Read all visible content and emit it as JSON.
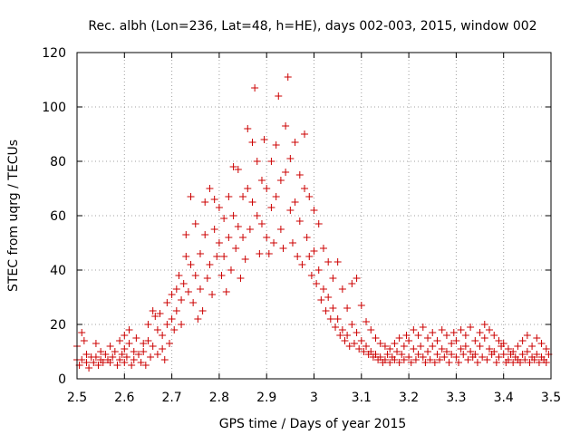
{
  "chart_data": {
    "type": "scatter",
    "title": "Rec. albh (Lon=236, Lat=48, h=HE), days 002-003, 2015, window 002",
    "xlabel": "GPS time / Days of year 2015",
    "ylabel": "STEC from uqrg / TECUs",
    "xlim": [
      2.5,
      3.5
    ],
    "ylim": [
      0,
      120
    ],
    "xticks": [
      2.5,
      2.6,
      2.7,
      2.8,
      2.9,
      3.0,
      3.1,
      3.2,
      3.3,
      3.4,
      3.5
    ],
    "xtick_labels": [
      "2.5",
      "2.6",
      "2.7",
      "2.8",
      "2.9",
      "3",
      "3.1",
      "3.2",
      "3.3",
      "3.4",
      "3.5"
    ],
    "yticks": [
      0,
      20,
      40,
      60,
      80,
      100,
      120
    ],
    "ytick_labels": [
      "0",
      "20",
      "40",
      "60",
      "80",
      "100",
      "120"
    ],
    "grid": true,
    "marker": "+",
    "color": "#cc0000",
    "series": [
      {
        "name": "STEC",
        "points": [
          [
            2.5,
            12
          ],
          [
            2.5,
            7
          ],
          [
            2.505,
            5
          ],
          [
            2.51,
            17
          ],
          [
            2.51,
            7
          ],
          [
            2.515,
            14
          ],
          [
            2.52,
            9
          ],
          [
            2.52,
            6
          ],
          [
            2.525,
            4
          ],
          [
            2.53,
            8
          ],
          [
            2.535,
            6
          ],
          [
            2.54,
            13
          ],
          [
            2.54,
            8
          ],
          [
            2.545,
            5
          ],
          [
            2.55,
            10
          ],
          [
            2.55,
            7
          ],
          [
            2.555,
            6
          ],
          [
            2.56,
            9
          ],
          [
            2.565,
            7
          ],
          [
            2.57,
            12
          ],
          [
            2.57,
            6
          ],
          [
            2.575,
            8
          ],
          [
            2.58,
            10
          ],
          [
            2.585,
            5
          ],
          [
            2.59,
            14
          ],
          [
            2.59,
            7
          ],
          [
            2.595,
            9
          ],
          [
            2.6,
            16
          ],
          [
            2.6,
            11
          ],
          [
            2.6,
            6
          ],
          [
            2.605,
            8
          ],
          [
            2.61,
            18
          ],
          [
            2.61,
            13
          ],
          [
            2.615,
            5
          ],
          [
            2.62,
            10
          ],
          [
            2.62,
            7
          ],
          [
            2.625,
            15
          ],
          [
            2.63,
            9
          ],
          [
            2.635,
            6
          ],
          [
            2.64,
            13
          ],
          [
            2.64,
            10
          ],
          [
            2.645,
            5
          ],
          [
            2.65,
            20
          ],
          [
            2.65,
            14
          ],
          [
            2.655,
            8
          ],
          [
            2.66,
            25
          ],
          [
            2.66,
            12
          ],
          [
            2.665,
            23
          ],
          [
            2.67,
            18
          ],
          [
            2.67,
            9
          ],
          [
            2.675,
            24
          ],
          [
            2.68,
            16
          ],
          [
            2.68,
            11
          ],
          [
            2.685,
            7
          ],
          [
            2.69,
            28
          ],
          [
            2.69,
            20
          ],
          [
            2.695,
            13
          ],
          [
            2.7,
            31
          ],
          [
            2.7,
            22
          ],
          [
            2.705,
            18
          ],
          [
            2.71,
            33
          ],
          [
            2.71,
            25
          ],
          [
            2.715,
            38
          ],
          [
            2.72,
            29
          ],
          [
            2.72,
            20
          ],
          [
            2.725,
            35
          ],
          [
            2.73,
            53
          ],
          [
            2.73,
            45
          ],
          [
            2.735,
            32
          ],
          [
            2.74,
            67
          ],
          [
            2.74,
            42
          ],
          [
            2.745,
            28
          ],
          [
            2.75,
            57
          ],
          [
            2.75,
            38
          ],
          [
            2.755,
            22
          ],
          [
            2.76,
            46
          ],
          [
            2.76,
            33
          ],
          [
            2.765,
            25
          ],
          [
            2.77,
            65
          ],
          [
            2.77,
            53
          ],
          [
            2.775,
            37
          ],
          [
            2.78,
            70
          ],
          [
            2.78,
            42
          ],
          [
            2.785,
            31
          ],
          [
            2.79,
            66
          ],
          [
            2.79,
            55
          ],
          [
            2.795,
            45
          ],
          [
            2.8,
            63
          ],
          [
            2.8,
            50
          ],
          [
            2.805,
            38
          ],
          [
            2.81,
            59
          ],
          [
            2.81,
            45
          ],
          [
            2.815,
            32
          ],
          [
            2.82,
            67
          ],
          [
            2.82,
            52
          ],
          [
            2.825,
            40
          ],
          [
            2.83,
            78
          ],
          [
            2.83,
            60
          ],
          [
            2.835,
            48
          ],
          [
            2.84,
            77
          ],
          [
            2.84,
            56
          ],
          [
            2.845,
            37
          ],
          [
            2.85,
            67
          ],
          [
            2.85,
            52
          ],
          [
            2.855,
            44
          ],
          [
            2.86,
            92
          ],
          [
            2.86,
            70
          ],
          [
            2.865,
            55
          ],
          [
            2.87,
            87
          ],
          [
            2.87,
            65
          ],
          [
            2.875,
            107
          ],
          [
            2.88,
            80
          ],
          [
            2.88,
            60
          ],
          [
            2.885,
            46
          ],
          [
            2.89,
            73
          ],
          [
            2.89,
            57
          ],
          [
            2.895,
            88
          ],
          [
            2.9,
            70
          ],
          [
            2.9,
            52
          ],
          [
            2.905,
            46
          ],
          [
            2.91,
            80
          ],
          [
            2.91,
            63
          ],
          [
            2.915,
            50
          ],
          [
            2.92,
            86
          ],
          [
            2.92,
            67
          ],
          [
            2.925,
            104
          ],
          [
            2.93,
            73
          ],
          [
            2.93,
            55
          ],
          [
            2.935,
            48
          ],
          [
            2.94,
            93
          ],
          [
            2.94,
            76
          ],
          [
            2.945,
            111
          ],
          [
            2.95,
            81
          ],
          [
            2.95,
            62
          ],
          [
            2.955,
            50
          ],
          [
            2.96,
            87
          ],
          [
            2.96,
            65
          ],
          [
            2.965,
            45
          ],
          [
            2.97,
            75
          ],
          [
            2.97,
            58
          ],
          [
            2.975,
            42
          ],
          [
            2.98,
            90
          ],
          [
            2.98,
            70
          ],
          [
            2.985,
            52
          ],
          [
            2.99,
            67
          ],
          [
            2.99,
            45
          ],
          [
            2.995,
            38
          ],
          [
            3.0,
            62
          ],
          [
            3.0,
            47
          ],
          [
            3.005,
            35
          ],
          [
            3.01,
            57
          ],
          [
            3.01,
            40
          ],
          [
            3.015,
            29
          ],
          [
            3.02,
            48
          ],
          [
            3.02,
            33
          ],
          [
            3.025,
            25
          ],
          [
            3.03,
            43
          ],
          [
            3.03,
            30
          ],
          [
            3.035,
            22
          ],
          [
            3.04,
            37
          ],
          [
            3.04,
            26
          ],
          [
            3.045,
            19
          ],
          [
            3.05,
            43
          ],
          [
            3.05,
            22
          ],
          [
            3.055,
            16
          ],
          [
            3.06,
            33
          ],
          [
            3.06,
            18
          ],
          [
            3.065,
            14
          ],
          [
            3.07,
            26
          ],
          [
            3.07,
            16
          ],
          [
            3.075,
            12
          ],
          [
            3.08,
            35
          ],
          [
            3.08,
            20
          ],
          [
            3.085,
            13
          ],
          [
            3.09,
            37
          ],
          [
            3.09,
            17
          ],
          [
            3.095,
            11
          ],
          [
            3.1,
            27
          ],
          [
            3.1,
            14
          ],
          [
            3.105,
            10
          ],
          [
            3.11,
            21
          ],
          [
            3.11,
            12
          ],
          [
            3.115,
            9
          ],
          [
            3.12,
            18
          ],
          [
            3.12,
            10
          ],
          [
            3.125,
            8
          ],
          [
            3.13,
            15
          ],
          [
            3.13,
            9
          ],
          [
            3.135,
            7
          ],
          [
            3.14,
            13
          ],
          [
            3.14,
            8
          ],
          [
            3.145,
            6
          ],
          [
            3.15,
            12
          ],
          [
            3.15,
            7
          ],
          [
            3.155,
            9
          ],
          [
            3.16,
            11
          ],
          [
            3.16,
            6
          ],
          [
            3.165,
            8
          ],
          [
            3.17,
            13
          ],
          [
            3.17,
            7
          ],
          [
            3.175,
            10
          ],
          [
            3.18,
            15
          ],
          [
            3.18,
            6
          ],
          [
            3.185,
            9
          ],
          [
            3.19,
            12
          ],
          [
            3.19,
            7
          ],
          [
            3.195,
            16
          ],
          [
            3.2,
            14
          ],
          [
            3.2,
            8
          ],
          [
            3.205,
            6
          ],
          [
            3.21,
            18
          ],
          [
            3.21,
            11
          ],
          [
            3.215,
            7
          ],
          [
            3.22,
            16
          ],
          [
            3.22,
            9
          ],
          [
            3.225,
            12
          ],
          [
            3.23,
            19
          ],
          [
            3.23,
            8
          ],
          [
            3.235,
            6
          ],
          [
            3.24,
            15
          ],
          [
            3.24,
            10
          ],
          [
            3.245,
            7
          ],
          [
            3.25,
            17
          ],
          [
            3.25,
            12
          ],
          [
            3.255,
            6
          ],
          [
            3.26,
            14
          ],
          [
            3.26,
            9
          ],
          [
            3.265,
            7
          ],
          [
            3.27,
            18
          ],
          [
            3.27,
            11
          ],
          [
            3.275,
            8
          ],
          [
            3.28,
            16
          ],
          [
            3.28,
            10
          ],
          [
            3.285,
            6
          ],
          [
            3.29,
            13
          ],
          [
            3.29,
            9
          ],
          [
            3.295,
            17
          ],
          [
            3.3,
            14
          ],
          [
            3.3,
            8
          ],
          [
            3.305,
            6
          ],
          [
            3.31,
            18
          ],
          [
            3.31,
            11
          ],
          [
            3.315,
            9
          ],
          [
            3.32,
            16
          ],
          [
            3.32,
            12
          ],
          [
            3.325,
            7
          ],
          [
            3.33,
            19
          ],
          [
            3.33,
            10
          ],
          [
            3.335,
            8
          ],
          [
            3.34,
            14
          ],
          [
            3.34,
            9
          ],
          [
            3.345,
            6
          ],
          [
            3.35,
            17
          ],
          [
            3.35,
            12
          ],
          [
            3.355,
            8
          ],
          [
            3.36,
            20
          ],
          [
            3.36,
            15
          ],
          [
            3.365,
            7
          ],
          [
            3.37,
            18
          ],
          [
            3.37,
            11
          ],
          [
            3.375,
            9
          ],
          [
            3.38,
            16
          ],
          [
            3.38,
            10
          ],
          [
            3.385,
            6
          ],
          [
            3.39,
            14
          ],
          [
            3.39,
            8
          ],
          [
            3.395,
            12
          ],
          [
            3.4,
            13
          ],
          [
            3.4,
            9
          ],
          [
            3.405,
            6
          ],
          [
            3.41,
            11
          ],
          [
            3.41,
            7
          ],
          [
            3.415,
            9
          ],
          [
            3.42,
            10
          ],
          [
            3.42,
            6
          ],
          [
            3.425,
            8
          ],
          [
            3.43,
            12
          ],
          [
            3.43,
            7
          ],
          [
            3.435,
            6
          ],
          [
            3.44,
            14
          ],
          [
            3.44,
            9
          ],
          [
            3.445,
            7
          ],
          [
            3.45,
            16
          ],
          [
            3.45,
            10
          ],
          [
            3.455,
            6
          ],
          [
            3.46,
            12
          ],
          [
            3.46,
            8
          ],
          [
            3.465,
            7
          ],
          [
            3.47,
            15
          ],
          [
            3.47,
            9
          ],
          [
            3.475,
            6
          ],
          [
            3.48,
            13
          ],
          [
            3.48,
            8
          ],
          [
            3.485,
            7
          ],
          [
            3.49,
            11
          ],
          [
            3.49,
            6
          ],
          [
            3.495,
            9
          ]
        ]
      }
    ]
  }
}
